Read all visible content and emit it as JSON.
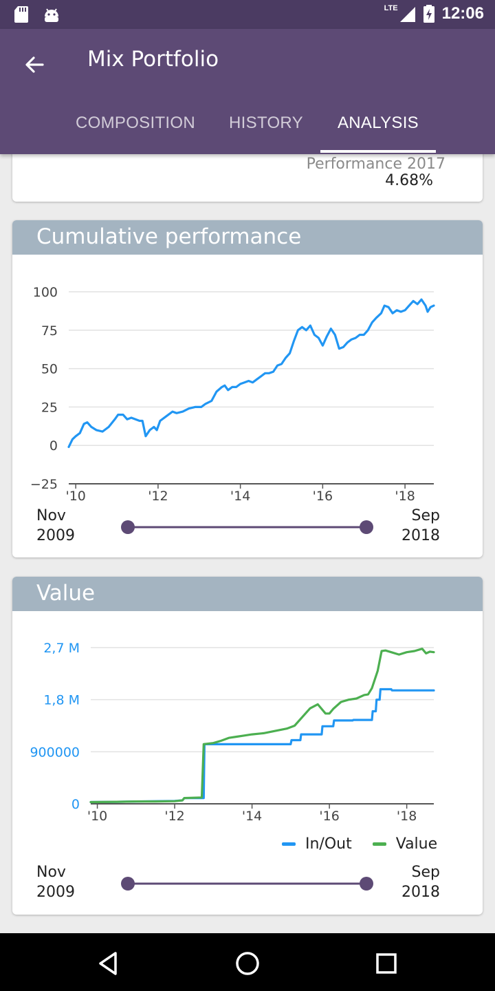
{
  "status_bar": {
    "time": "12:06",
    "network": "LTE",
    "icons": [
      "sd-card-icon",
      "android-icon",
      "signal-icon",
      "battery-charging-icon"
    ]
  },
  "app_bar": {
    "title": "Mix Portfolio",
    "back_icon": "arrow-back-icon"
  },
  "tabs": [
    {
      "label": "COMPOSITION",
      "active": false
    },
    {
      "label": "HISTORY",
      "active": false
    },
    {
      "label": "ANALYSIS",
      "active": true
    }
  ],
  "performance_card": {
    "label": "Performance 2017",
    "value": "4.68%"
  },
  "cumulative_card": {
    "title": "Cumulative performance",
    "range": {
      "start_month": "Nov",
      "start_year": "2009",
      "end_month": "Sep",
      "end_year": "2018"
    }
  },
  "value_card": {
    "title": "Value",
    "range": {
      "start_month": "Nov",
      "start_year": "2009",
      "end_month": "Sep",
      "end_year": "2018"
    }
  },
  "colors": {
    "primary": "#5d4a75",
    "status": "#4b3b62",
    "card_header": "#a4b4c1",
    "line_blue": "#2196f3",
    "line_green": "#4caf50",
    "slider": "#5d4a75"
  },
  "chart_data": [
    {
      "type": "line",
      "title": "Cumulative performance",
      "xlim": [
        2009.83,
        2018.7
      ],
      "ylim": [
        -25,
        100
      ],
      "y_ticks": [
        "100",
        "75",
        "50",
        "25",
        "0",
        "−25"
      ],
      "x_ticks": [
        "'10",
        "'12",
        "'14",
        "'16",
        "'18"
      ],
      "grid": true,
      "series": [
        {
          "color": "#2196f3",
          "points": [
            [
              2009.83,
              -1
            ],
            [
              2009.92,
              4
            ],
            [
              2010.0,
              6
            ],
            [
              2010.1,
              8
            ],
            [
              2010.2,
              14
            ],
            [
              2010.28,
              15
            ],
            [
              2010.38,
              12
            ],
            [
              2010.5,
              10
            ],
            [
              2010.65,
              9
            ],
            [
              2010.8,
              12
            ],
            [
              2010.95,
              17
            ],
            [
              2011.03,
              20
            ],
            [
              2011.15,
              20
            ],
            [
              2011.25,
              17
            ],
            [
              2011.35,
              18
            ],
            [
              2011.45,
              17
            ],
            [
              2011.55,
              16
            ],
            [
              2011.62,
              16
            ],
            [
              2011.7,
              6
            ],
            [
              2011.8,
              10
            ],
            [
              2011.9,
              12
            ],
            [
              2011.97,
              10
            ],
            [
              2012.05,
              16
            ],
            [
              2012.2,
              19
            ],
            [
              2012.35,
              22
            ],
            [
              2012.45,
              21
            ],
            [
              2012.6,
              22
            ],
            [
              2012.75,
              24
            ],
            [
              2012.9,
              25
            ],
            [
              2013.05,
              25
            ],
            [
              2013.15,
              27
            ],
            [
              2013.3,
              29
            ],
            [
              2013.42,
              35
            ],
            [
              2013.55,
              38
            ],
            [
              2013.62,
              39
            ],
            [
              2013.7,
              36
            ],
            [
              2013.8,
              38
            ],
            [
              2013.9,
              38
            ],
            [
              2014.0,
              40
            ],
            [
              2014.1,
              41
            ],
            [
              2014.2,
              42
            ],
            [
              2014.3,
              41
            ],
            [
              2014.4,
              43
            ],
            [
              2014.5,
              45
            ],
            [
              2014.6,
              47
            ],
            [
              2014.7,
              47
            ],
            [
              2014.8,
              48
            ],
            [
              2014.9,
              52
            ],
            [
              2015.0,
              53
            ],
            [
              2015.1,
              57
            ],
            [
              2015.2,
              60
            ],
            [
              2015.3,
              68
            ],
            [
              2015.4,
              75
            ],
            [
              2015.5,
              77
            ],
            [
              2015.6,
              75
            ],
            [
              2015.7,
              78
            ],
            [
              2015.8,
              72
            ],
            [
              2015.9,
              70
            ],
            [
              2016.0,
              65
            ],
            [
              2016.1,
              71
            ],
            [
              2016.2,
              76
            ],
            [
              2016.3,
              72
            ],
            [
              2016.4,
              63
            ],
            [
              2016.5,
              64
            ],
            [
              2016.6,
              67
            ],
            [
              2016.7,
              69
            ],
            [
              2016.8,
              70
            ],
            [
              2016.9,
              72
            ],
            [
              2017.0,
              72
            ],
            [
              2017.1,
              75
            ],
            [
              2017.2,
              80
            ],
            [
              2017.3,
              83
            ],
            [
              2017.42,
              86
            ],
            [
              2017.5,
              91
            ],
            [
              2017.6,
              90
            ],
            [
              2017.7,
              86
            ],
            [
              2017.8,
              88
            ],
            [
              2017.9,
              87
            ],
            [
              2018.0,
              88
            ],
            [
              2018.1,
              91
            ],
            [
              2018.2,
              94
            ],
            [
              2018.3,
              92
            ],
            [
              2018.4,
              95
            ],
            [
              2018.5,
              91
            ],
            [
              2018.55,
              87
            ],
            [
              2018.62,
              90
            ],
            [
              2018.7,
              91
            ]
          ]
        }
      ]
    },
    {
      "type": "line",
      "title": "Value",
      "xlim": [
        2009.83,
        2018.7
      ],
      "ylim": [
        0,
        2700000
      ],
      "y_ticks": [
        "2,7 M",
        "1,8 M",
        "900000",
        "0"
      ],
      "x_ticks": [
        "'10",
        "'12",
        "'14",
        "'16",
        "'18"
      ],
      "grid": true,
      "legend": "bottom-right",
      "series": [
        {
          "name": "In/Out",
          "color": "#2196f3",
          "points": [
            [
              2009.83,
              30000
            ],
            [
              2010.5,
              35000
            ],
            [
              2011.0,
              40000
            ],
            [
              2011.5,
              45000
            ],
            [
              2012.0,
              50000
            ],
            [
              2012.2,
              60000
            ],
            [
              2012.25,
              100000
            ],
            [
              2012.75,
              100000
            ],
            [
              2012.77,
              1030000
            ],
            [
              2013.5,
              1030000
            ],
            [
              2014.0,
              1030000
            ],
            [
              2015.0,
              1030000
            ],
            [
              2015.02,
              1100000
            ],
            [
              2015.25,
              1100000
            ],
            [
              2015.27,
              1200000
            ],
            [
              2015.8,
              1200000
            ],
            [
              2015.82,
              1340000
            ],
            [
              2016.1,
              1340000
            ],
            [
              2016.12,
              1440000
            ],
            [
              2016.6,
              1440000
            ],
            [
              2016.62,
              1450000
            ],
            [
              2017.1,
              1450000
            ],
            [
              2017.12,
              1600000
            ],
            [
              2017.2,
              1600000
            ],
            [
              2017.22,
              1800000
            ],
            [
              2017.3,
              1800000
            ],
            [
              2017.32,
              1980000
            ],
            [
              2017.6,
              1980000
            ],
            [
              2017.62,
              1960000
            ],
            [
              2018.7,
              1960000
            ]
          ]
        },
        {
          "name": "Value",
          "color": "#4caf50",
          "points": [
            [
              2009.83,
              30000
            ],
            [
              2010.5,
              35000
            ],
            [
              2011.0,
              40000
            ],
            [
              2011.5,
              40000
            ],
            [
              2012.0,
              45000
            ],
            [
              2012.2,
              60000
            ],
            [
              2012.25,
              100000
            ],
            [
              2012.7,
              110000
            ],
            [
              2012.75,
              1030000
            ],
            [
              2013.0,
              1050000
            ],
            [
              2013.2,
              1090000
            ],
            [
              2013.4,
              1140000
            ],
            [
              2013.6,
              1160000
            ],
            [
              2013.8,
              1180000
            ],
            [
              2014.0,
              1200000
            ],
            [
              2014.3,
              1220000
            ],
            [
              2014.6,
              1260000
            ],
            [
              2014.9,
              1300000
            ],
            [
              2015.1,
              1350000
            ],
            [
              2015.3,
              1500000
            ],
            [
              2015.5,
              1650000
            ],
            [
              2015.7,
              1720000
            ],
            [
              2015.9,
              1560000
            ],
            [
              2016.0,
              1560000
            ],
            [
              2016.1,
              1640000
            ],
            [
              2016.3,
              1760000
            ],
            [
              2016.5,
              1800000
            ],
            [
              2016.7,
              1820000
            ],
            [
              2016.9,
              1880000
            ],
            [
              2017.0,
              1890000
            ],
            [
              2017.1,
              2000000
            ],
            [
              2017.25,
              2300000
            ],
            [
              2017.35,
              2640000
            ],
            [
              2017.45,
              2650000
            ],
            [
              2017.6,
              2620000
            ],
            [
              2017.8,
              2580000
            ],
            [
              2018.0,
              2620000
            ],
            [
              2018.2,
              2640000
            ],
            [
              2018.4,
              2680000
            ],
            [
              2018.5,
              2600000
            ],
            [
              2018.6,
              2630000
            ],
            [
              2018.7,
              2620000
            ]
          ]
        }
      ]
    }
  ]
}
